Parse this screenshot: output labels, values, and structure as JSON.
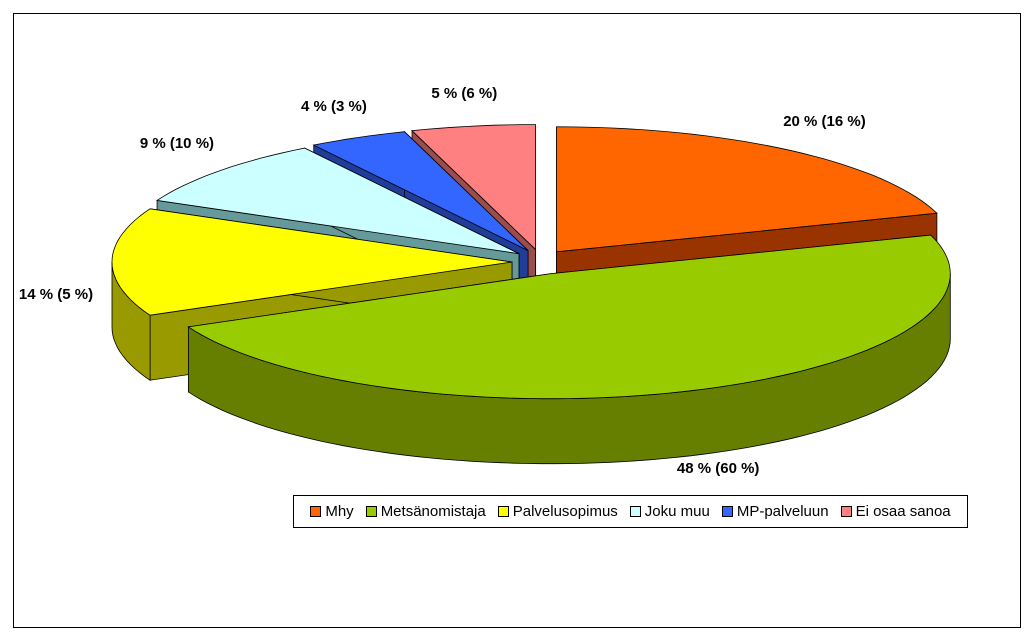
{
  "chart_data": {
    "type": "pie3d",
    "categories": [
      "Mhy",
      "Metsänomistaja",
      "Palvelusopimus",
      "Joku muu",
      "MP-palveluun",
      "Ei osaa sanoa"
    ],
    "values": [
      20,
      48,
      14,
      9,
      4,
      5
    ],
    "value_labels": [
      "20 % (16 %)",
      "48 % (60 %)",
      "14 % (5 %)",
      "9 % (10 %)",
      "4 % (3 %)",
      "5 % (6 %)"
    ],
    "colors": [
      "#ff6600",
      "#99cc00",
      "#ffff00",
      "#ccffff",
      "#3366ff",
      "#ff8080"
    ],
    "side_colors": [
      "#993300",
      "#667f00",
      "#999900",
      "#669999",
      "#1f3d99",
      "#994d4d"
    ],
    "legend": "bottom"
  }
}
